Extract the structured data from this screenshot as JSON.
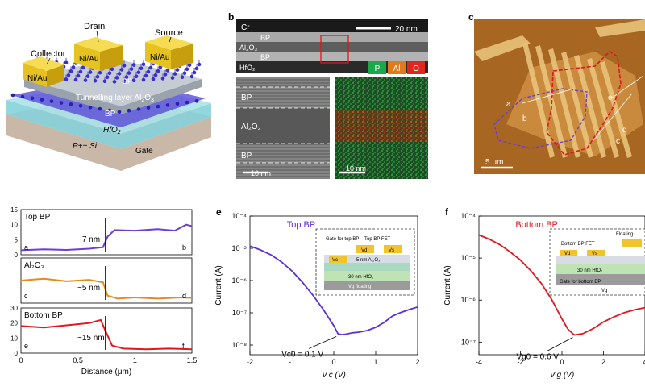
{
  "panels": {
    "b": "b",
    "c": "c",
    "e": "e",
    "f": "f"
  },
  "device": {
    "labels": {
      "collector": "Collector",
      "drain": "Drain",
      "source": "Source",
      "metal": "Ni/Au",
      "bp": "BP",
      "tunnel": "Tunnelling layer Al",
      "tunnel_sub": "2",
      "tunnel_tail": "O",
      "tunnel_sub2": "3",
      "hfo": "HfO",
      "hfo_sub": "2",
      "si": "P++ Si",
      "gate": "Gate"
    }
  },
  "tem": {
    "layer_labels": [
      "Cr",
      "BP",
      "Al₂O₃",
      "BP",
      "HfO₂"
    ],
    "scale_top": "20 nm",
    "zoom_labels": [
      "BP",
      "Al₂O₃",
      "BP"
    ],
    "scale_left": "10 nm",
    "scale_right": "10 nm",
    "elements": [
      {
        "label": "P",
        "color": "#1aa84a"
      },
      {
        "label": "Al",
        "color": "#e07a1f"
      },
      {
        "label": "O",
        "color": "#e0271f"
      }
    ]
  },
  "afm": {
    "letters": [
      "a",
      "b",
      "c",
      "d",
      "e"
    ],
    "scale": "5 μm",
    "colors": {
      "top": "#6b3fd6",
      "bottom": "#e0171f"
    }
  },
  "profiles": {
    "xlabel": "Distance (μm)",
    "xticks": [
      "0",
      "0.5",
      "1",
      "1.5"
    ],
    "subplots": [
      {
        "title": "Top BP",
        "yticks": [
          "15",
          "10",
          "5",
          "0"
        ],
        "left_letter": "a",
        "right_letter": "b",
        "annotation": "~7 nm",
        "color": "#6b3fd6"
      },
      {
        "title": "Al₂O₃",
        "yticks": [],
        "left_letter": "c",
        "right_letter": "d",
        "annotation": "~5 nm",
        "color": "#e58a1f"
      },
      {
        "title": "Bottom BP",
        "yticks": [
          "30",
          "20",
          "10",
          "0"
        ],
        "left_letter": "e",
        "right_letter": "f",
        "annotation": "~15 nm",
        "color": "#e0171f"
      }
    ]
  },
  "chart_data": [
    {
      "type": "line",
      "title": "Top BP",
      "xlabel": "V c (V)",
      "ylabel": "Current (A)",
      "xlim": [
        -2,
        2
      ],
      "ylim_log10": [
        -8.3,
        -4
      ],
      "log_y": true,
      "xticks": [
        "-2",
        "-1",
        "0",
        "1",
        "2"
      ],
      "yticks": [
        "10⁻⁴",
        "10⁻⁵",
        "10⁻⁶",
        "10⁻⁷",
        "10⁻⁸"
      ],
      "annotation": "Vc0 = 0.1 V",
      "inset": {
        "labels": [
          "Gate for top BP",
          "Top BP FET",
          "5 nm Al₂O₃",
          "30 nm HfO₂",
          "Vg floating",
          "Vc",
          "Vd",
          "Vs"
        ]
      },
      "series": [
        {
          "name": "Top BP",
          "color": "#5a30d8",
          "x": [
            -2.0,
            -1.75,
            -1.5,
            -1.25,
            -1.0,
            -0.75,
            -0.5,
            -0.25,
            0.0,
            0.1,
            0.2,
            0.3,
            0.45,
            0.6,
            0.8,
            1.0,
            1.2,
            1.4,
            1.6,
            1.8,
            2.0
          ],
          "y_log10": [
            -4.93,
            -5.05,
            -5.2,
            -5.42,
            -5.7,
            -6.05,
            -6.45,
            -6.9,
            -7.4,
            -7.65,
            -7.68,
            -7.66,
            -7.62,
            -7.6,
            -7.55,
            -7.45,
            -7.3,
            -7.1,
            -6.99,
            -6.9,
            -6.82
          ]
        }
      ]
    },
    {
      "type": "line",
      "title": "Bottom BP",
      "xlabel": "V g (V)",
      "ylabel": "Current (A)",
      "xlim": [
        -4,
        4
      ],
      "ylim_log10": [
        -7.3,
        -4
      ],
      "log_y": true,
      "xticks": [
        "-4",
        "-2",
        "0",
        "2",
        "4"
      ],
      "yticks": [
        "10⁻⁴",
        "10⁻⁵",
        "10⁻⁶",
        "10⁻⁷"
      ],
      "annotation": "Vg0 = 0.6 V",
      "inset": {
        "labels": [
          "Bottom BP FET",
          "Floating",
          "30 nm HfO₂",
          "Gate for bottom BP",
          "Vd",
          "Vs",
          "Vg"
        ]
      },
      "series": [
        {
          "name": "Bottom BP",
          "color": "#e0171f",
          "x": [
            -4.0,
            -3.5,
            -3.0,
            -2.5,
            -2.0,
            -1.5,
            -1.0,
            -0.5,
            0.0,
            0.3,
            0.6,
            1.0,
            1.5,
            2.0,
            2.5,
            3.0,
            3.5,
            4.0
          ],
          "y_log10": [
            -4.45,
            -4.55,
            -4.68,
            -4.85,
            -5.05,
            -5.3,
            -5.6,
            -5.98,
            -6.45,
            -6.7,
            -6.83,
            -6.8,
            -6.68,
            -6.52,
            -6.4,
            -6.3,
            -6.23,
            -6.18
          ]
        }
      ]
    }
  ]
}
